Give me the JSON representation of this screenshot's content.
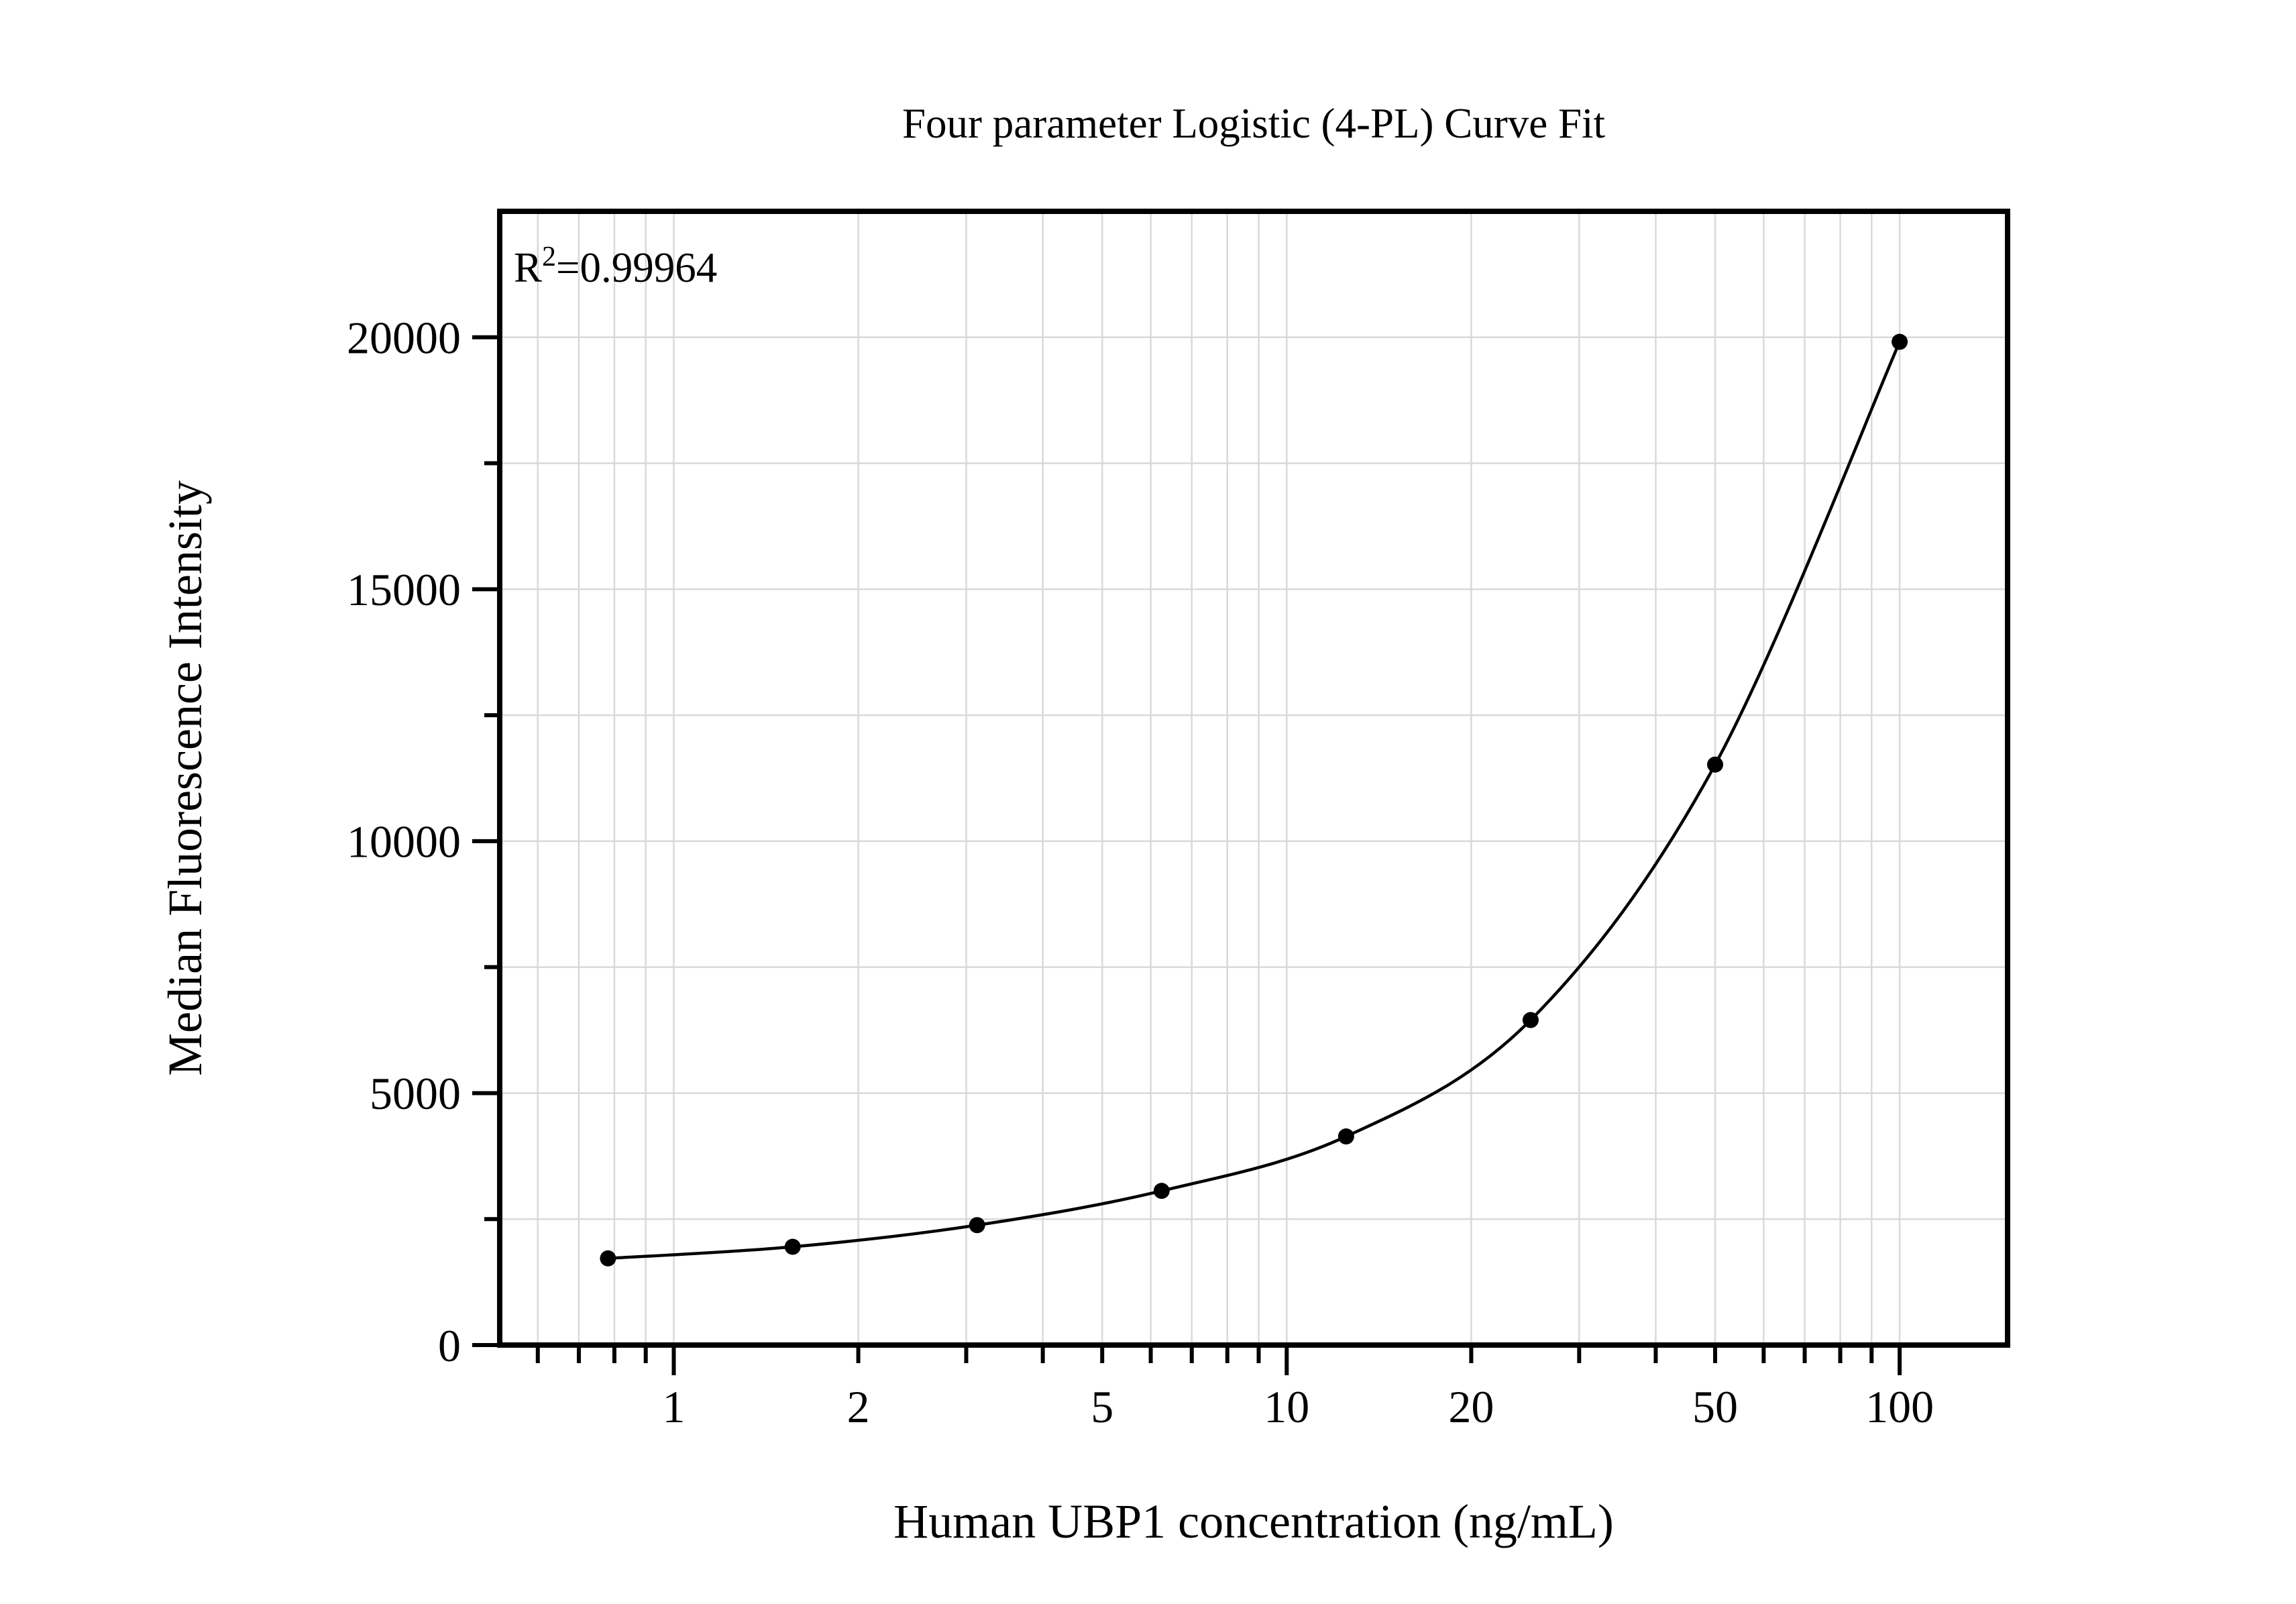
{
  "page": {
    "background": "#ffffff"
  },
  "chart_data": {
    "type": "scatter",
    "title": "Four parameter Logistic (4-PL) Curve Fit",
    "xlabel": "Human UBP1 concentration (ng/mL)",
    "ylabel": "Median Fluorescence Intensity",
    "annotation": {
      "base": "R",
      "superscript": "2",
      "rest": "=0.99964",
      "value": 0.99964
    },
    "x_scale": "log10",
    "y_scale": "linear",
    "xlim": [
      0.52,
      150
    ],
    "ylim": [
      0,
      22500
    ],
    "grid": true,
    "legend": "none",
    "series": [
      {
        "name": "standard-curve-points",
        "marker": "filled-circle",
        "x": [
          0.781,
          1.563,
          3.125,
          6.25,
          12.5,
          25,
          50,
          100
        ],
        "y": [
          1720,
          1950,
          2380,
          3060,
          4140,
          6450,
          11520,
          19910
        ]
      }
    ],
    "fit_curve": {
      "name": "4pl-fit",
      "passes_through_points": true,
      "from_x": 0.781,
      "to_x": 100
    },
    "x_major_ticks": [
      1,
      10,
      100
    ],
    "x_minor_ticks": [
      0.6,
      0.7,
      0.8,
      0.9,
      2,
      3,
      4,
      5,
      6,
      7,
      8,
      9,
      20,
      30,
      40,
      50,
      60,
      70,
      80,
      90
    ],
    "x_tick_labels": [
      {
        "value": 1,
        "label": "1"
      },
      {
        "value": 2,
        "label": "2"
      },
      {
        "value": 5,
        "label": "5"
      },
      {
        "value": 10,
        "label": "10"
      },
      {
        "value": 20,
        "label": "20"
      },
      {
        "value": 50,
        "label": "50"
      },
      {
        "value": 100,
        "label": "100"
      }
    ],
    "y_major_ticks": [
      0,
      5000,
      10000,
      15000,
      20000
    ],
    "y_minor_ticks": [
      2500,
      7500,
      12500,
      17500
    ],
    "y_tick_labels": [
      {
        "value": 0,
        "label": "0"
      },
      {
        "value": 5000,
        "label": "5000"
      },
      {
        "value": 10000,
        "label": "10000"
      },
      {
        "value": 15000,
        "label": "15000"
      },
      {
        "value": 20000,
        "label": "20000"
      }
    ]
  },
  "colors": {
    "foreground": "#000000",
    "background": "#ffffff",
    "gridline": "#d9d9d9"
  }
}
